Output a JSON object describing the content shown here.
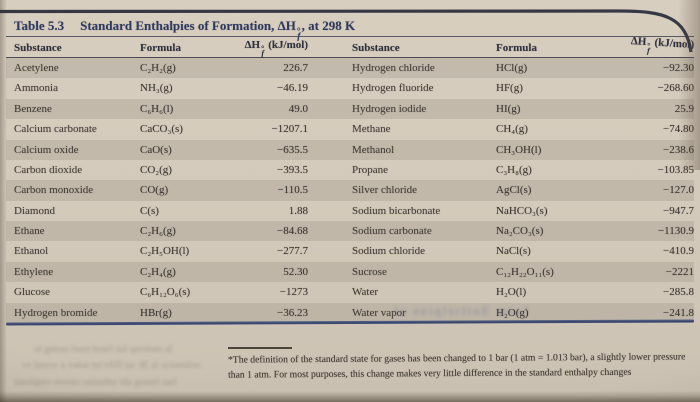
{
  "table": {
    "label": "Table 5.3",
    "title_prefix": "Standard Enthalpies of Formation, ",
    "title_suffix": ", at 298 K",
    "enthalpy_symbol": {
      "base": "ΔH",
      "sup": "°",
      "sub": "f"
    },
    "unit": "(kJ/mol)",
    "headers": {
      "substance": "Substance",
      "formula": "Formula"
    },
    "left_rows": [
      {
        "substance": "Acetylene",
        "formula": "C₂H₂(g)",
        "value": "226.7"
      },
      {
        "substance": "Ammonia",
        "formula": "NH₃(g)",
        "value": "−46.19"
      },
      {
        "substance": "Benzene",
        "formula": "C₆H₆(l)",
        "value": "49.0"
      },
      {
        "substance": "Calcium carbonate",
        "formula": "CaCO₃(s)",
        "value": "−1207.1"
      },
      {
        "substance": "Calcium oxide",
        "formula": "CaO(s)",
        "value": "−635.5"
      },
      {
        "substance": "Carbon dioxide",
        "formula": "CO₂(g)",
        "value": "−393.5"
      },
      {
        "substance": "Carbon monoxide",
        "formula": "CO(g)",
        "value": "−110.5"
      },
      {
        "substance": "Diamond",
        "formula": "C(s)",
        "value": "1.88"
      },
      {
        "substance": "Ethane",
        "formula": "C₂H₆(g)",
        "value": "−84.68"
      },
      {
        "substance": "Ethanol",
        "formula": "C₂H₅OH(l)",
        "value": "−277.7"
      },
      {
        "substance": "Ethylene",
        "formula": "C₂H₄(g)",
        "value": "52.30"
      },
      {
        "substance": "Glucose",
        "formula": "C₆H₁₂O₆(s)",
        "value": "−1273"
      },
      {
        "substance": "Hydrogen bromide",
        "formula": "HBr(g)",
        "value": "−36.23"
      }
    ],
    "right_rows": [
      {
        "substance": "Hydrogen chloride",
        "formula": "HCl(g)",
        "value": "−92.30"
      },
      {
        "substance": "Hydrogen fluoride",
        "formula": "HF(g)",
        "value": "−268.60"
      },
      {
        "substance": "Hydrogen iodide",
        "formula": "HI(g)",
        "value": "25.9"
      },
      {
        "substance": "Methane",
        "formula": "CH₄(g)",
        "value": "−74.80"
      },
      {
        "substance": "Methanol",
        "formula": "CH₃OH(l)",
        "value": "−238.6"
      },
      {
        "substance": "Propane",
        "formula": "C₃H₈(g)",
        "value": "−103.85"
      },
      {
        "substance": "Silver chloride",
        "formula": "AgCl(s)",
        "value": "−127.0"
      },
      {
        "substance": "Sodium bicarbonate",
        "formula": "NaHCO₃(s)",
        "value": "−947.7"
      },
      {
        "substance": "Sodium carbonate",
        "formula": "Na₂CO₃(s)",
        "value": "−1130.9"
      },
      {
        "substance": "Sodium chloride",
        "formula": "NaCl(s)",
        "value": "−410.9"
      },
      {
        "substance": "Sucrose",
        "formula": "C₁₂H₂₂O₁₁(s)",
        "value": "−2221"
      },
      {
        "substance": "Water",
        "formula": "H₂O(l)",
        "value": "−285.8"
      },
      {
        "substance": "Water vapor",
        "formula": "H₂O(g)",
        "value": "−241.8"
      }
    ]
  },
  "footnote": {
    "text": "*The definition of the standard state for gases has been changed to 1 bar (1 atm = 1.013 bar), a slightly lower pressure than 1 atm. For most purposes, this change makes very little difference in the standard enthalpy changes"
  },
  "artifacts": {
    "water_row_ghost": "lo eeiqlsrltnE mio1",
    "bottom_ghost_1": "ot gnisas bsen boerl sul qersloes al",
    "bottom_ghost_2": "ve lenow a value ter tAH tar 3E al scnseuloa",
    "bottom_ghost_3": "tanslques eeruso onlssdne tda gueerl tael"
  },
  "colors": {
    "page": "#d4cabb",
    "row_stripe": "#c6bdb0",
    "title_navy": "#2d3a63",
    "bottom_rule_navy": "#35426b",
    "body_text": "#443e39"
  }
}
